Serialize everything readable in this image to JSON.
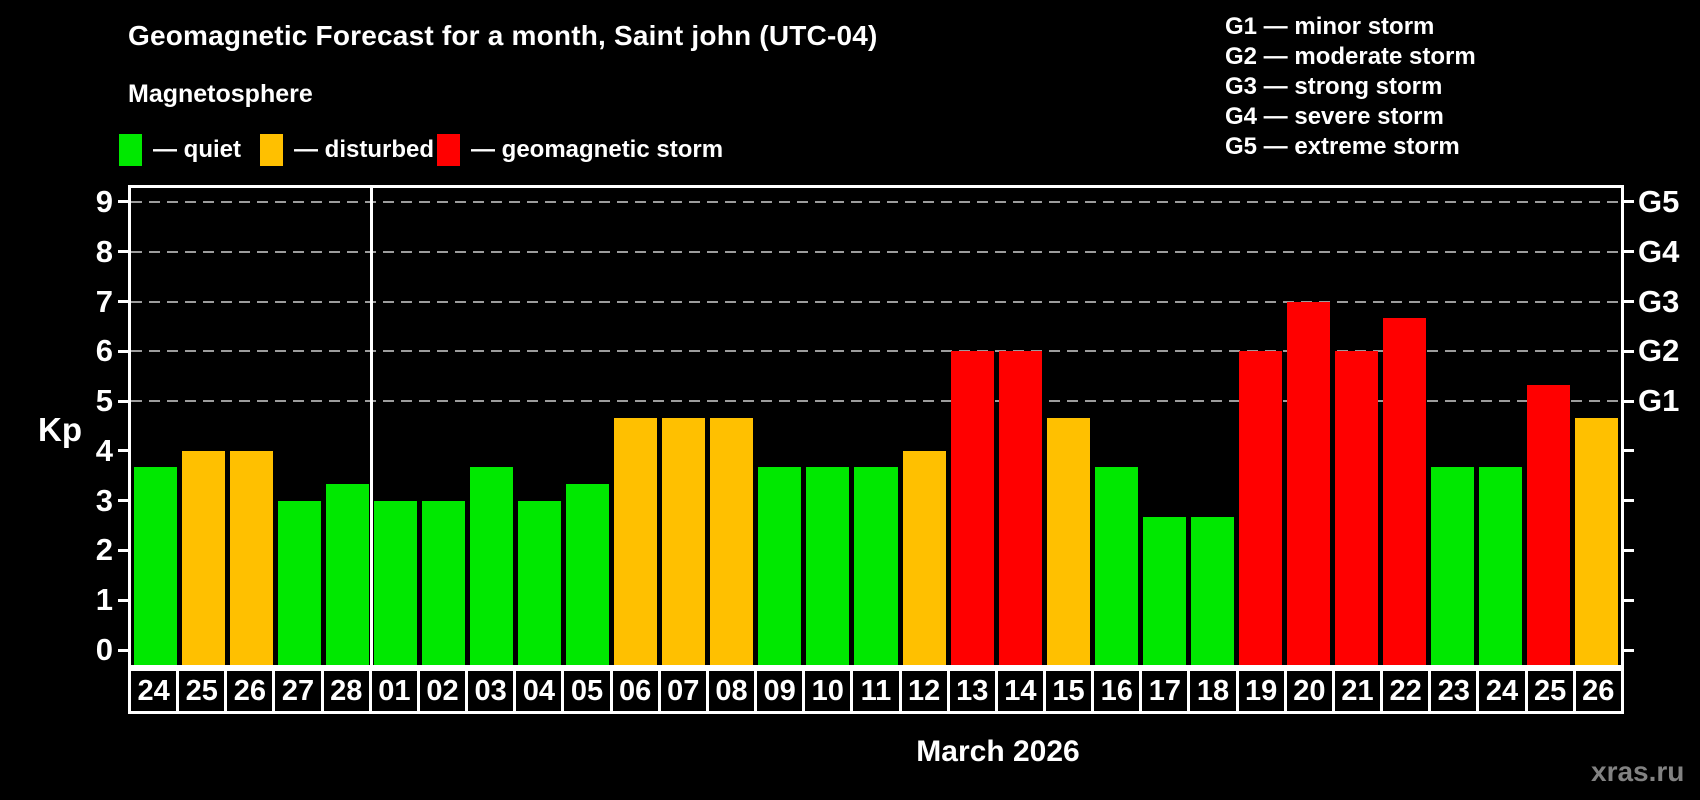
{
  "header": {
    "title": "Geomagnetic Forecast for a month, Saint john (UTC-04)",
    "subtitle": "Magnetosphere"
  },
  "kp_legend": [
    {
      "name": "quiet",
      "label": "— quiet",
      "color": "#00e800"
    },
    {
      "name": "disturbed",
      "label": "— disturbed",
      "color": "#ffc000"
    },
    {
      "name": "storm",
      "label": "— geomagnetic storm",
      "color": "#ff0000"
    }
  ],
  "g_legend": [
    "G1 — minor storm",
    "G2 — moderate storm",
    "G3 — strong storm",
    "G4 — severe storm",
    "G5 — extreme storm"
  ],
  "axis": {
    "y_label": "Kp",
    "x_label": "March 2026",
    "left_ticks": [
      "0",
      "1",
      "2",
      "3",
      "4",
      "5",
      "6",
      "7",
      "8",
      "9"
    ],
    "right_tick_labels": [
      {
        "value": 5,
        "label": "G1"
      },
      {
        "value": 6,
        "label": "G2"
      },
      {
        "value": 7,
        "label": "G3"
      },
      {
        "value": 8,
        "label": "G4"
      },
      {
        "value": 9,
        "label": "G5"
      }
    ]
  },
  "watermark": "xras.ru",
  "chart_data": {
    "type": "bar",
    "title": "Geomagnetic Forecast for a month, Saint john (UTC-04)",
    "ylabel": "Kp",
    "xlabel": "March 2026",
    "ylim": [
      0,
      9
    ],
    "grid": "dashed horizontal at storm levels",
    "gridlines_at": [
      5,
      6,
      7,
      8,
      9
    ],
    "categories": [
      "24",
      "25",
      "26",
      "27",
      "28",
      "01",
      "02",
      "03",
      "04",
      "05",
      "06",
      "07",
      "08",
      "09",
      "10",
      "11",
      "12",
      "13",
      "14",
      "15",
      "16",
      "17",
      "18",
      "19",
      "20",
      "21",
      "22",
      "23",
      "24",
      "25",
      "26"
    ],
    "month_separator_after_index": 4,
    "values": [
      3.67,
      4,
      4,
      3,
      3.33,
      3,
      3,
      3.67,
      3,
      3.33,
      4.67,
      4.67,
      4.67,
      3.67,
      3.67,
      3.67,
      4,
      6,
      6,
      4.67,
      3.67,
      2.67,
      2.67,
      6,
      7,
      6,
      6.67,
      3.67,
      3.67,
      5.33,
      4.67
    ],
    "statuses": [
      "quiet",
      "disturbed",
      "disturbed",
      "quiet",
      "quiet",
      "quiet",
      "quiet",
      "quiet",
      "quiet",
      "quiet",
      "disturbed",
      "disturbed",
      "disturbed",
      "quiet",
      "quiet",
      "quiet",
      "disturbed",
      "storm",
      "storm",
      "disturbed",
      "quiet",
      "quiet",
      "quiet",
      "storm",
      "storm",
      "storm",
      "storm",
      "quiet",
      "quiet",
      "storm",
      "disturbed"
    ],
    "status_colors": {
      "quiet": "#00e800",
      "disturbed": "#ffc000",
      "storm": "#ff0000"
    }
  }
}
